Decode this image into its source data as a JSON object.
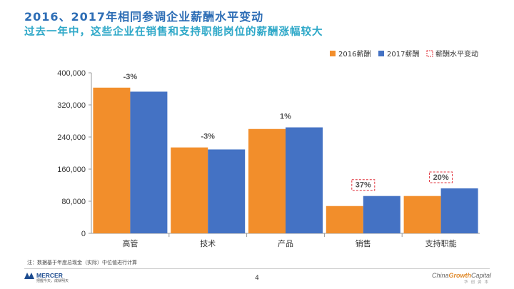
{
  "header": {
    "title": "2016、2017年相同参调企业薪酬水平变动",
    "subtitle": "过去一年中，这些企业在销售和支持职能岗位的薪酬涨幅较大"
  },
  "footer": {
    "footnote": "注：数据基于年度总现金（实际）中位值进行计算",
    "page_number": "4",
    "left_logo_name": "MERCER",
    "left_logo_tagline": "把握今天，成就明天",
    "right_brand": "ChinaGrowthCapital",
    "right_brand_parts": [
      "China",
      "Growth",
      "Capital"
    ],
    "right_brand_sub": "华创资本"
  },
  "colors": {
    "series_2016": "#f28e2b",
    "series_2017": "#4472c4",
    "change_box": "#e0303a",
    "title": "#2d6db5",
    "subtitle": "#2ea8c8"
  },
  "chart_data": {
    "type": "bar",
    "title": "",
    "xlabel": "",
    "ylabel": "",
    "categories": [
      "高管",
      "技术",
      "产品",
      "销售",
      "支持职能"
    ],
    "series": [
      {
        "name": "2016薪酬",
        "values": [
          363000,
          214000,
          260000,
          68000,
          93000
        ]
      },
      {
        "name": "2017薪酬",
        "values": [
          353000,
          209000,
          264000,
          93000,
          112000
        ]
      }
    ],
    "change_label_name": "薪酬水平变动",
    "change_labels": [
      "-3%",
      "-3%",
      "1%",
      "37%",
      "20%"
    ],
    "change_boxed": [
      false,
      false,
      false,
      true,
      true
    ],
    "ylim": [
      0,
      400000
    ],
    "yticks": [
      0,
      80000,
      160000,
      240000,
      320000,
      400000
    ],
    "ytick_labels": [
      "0",
      "80,000",
      "160,000",
      "240,000",
      "320,000",
      "400,000"
    ],
    "grid": false,
    "legend_position": "top-right"
  }
}
